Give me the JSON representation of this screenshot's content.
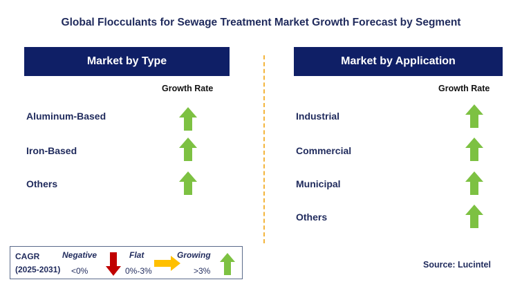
{
  "title": "Global Flocculants for Sewage Treatment Market Growth Forecast by Segment",
  "left_panel": {
    "header": "Market by Type",
    "growth_rate_label": "Growth Rate",
    "rows": [
      {
        "label": "Aluminum-Based",
        "trend": "growing"
      },
      {
        "label": "Iron-Based",
        "trend": "growing"
      },
      {
        "label": "Others",
        "trend": "growing"
      }
    ]
  },
  "right_panel": {
    "header": "Market by Application",
    "growth_rate_label": "Growth Rate",
    "rows": [
      {
        "label": "Industrial",
        "trend": "growing"
      },
      {
        "label": "Commercial",
        "trend": "growing"
      },
      {
        "label": "Municipal",
        "trend": "growing"
      },
      {
        "label": "Others",
        "trend": "growing"
      }
    ]
  },
  "legend": {
    "cagr_label": "CAGR",
    "period": "(2025-2031)",
    "negative_label": "Negative",
    "negative_range": "<0%",
    "flat_label": "Flat",
    "flat_range": "0%-3%",
    "growing_label": "Growing",
    "growing_range": ">3%"
  },
  "source": "Source: Lucintel",
  "colors": {
    "header_bg": "#0f1f66",
    "growing_arrow": "#7dc142",
    "negative_arrow": "#c00000",
    "flat_arrow": "#ffc000",
    "divider": "#f3b43a"
  }
}
